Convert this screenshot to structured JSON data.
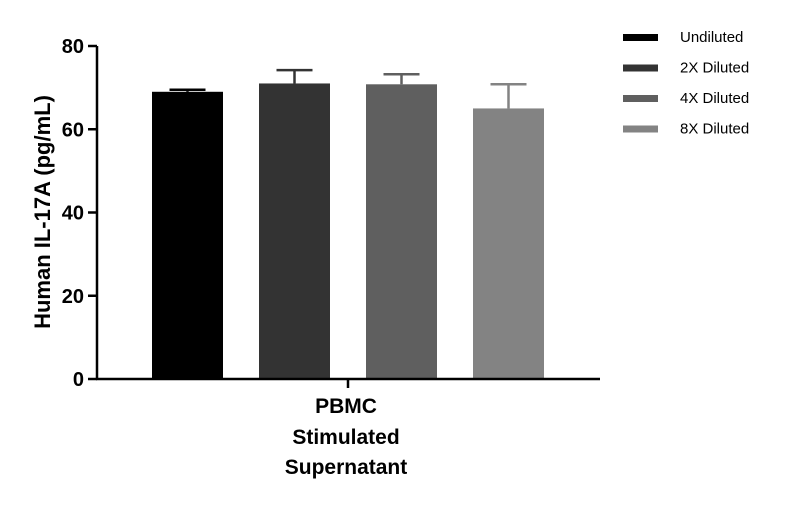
{
  "chart_data": {
    "type": "bar",
    "ylabel": "Human IL-17A (pg/mL)",
    "ylim": [
      0,
      80
    ],
    "yticks": [
      0,
      20,
      40,
      60,
      80
    ],
    "category_lines": [
      "PBMC",
      "Stimulated",
      "Supernatant"
    ],
    "legend_position": "top-right",
    "grid": false,
    "series": [
      {
        "name": "Undiluted",
        "value": 69.0,
        "error": 0.5,
        "color": "#000000"
      },
      {
        "name": "2X Diluted",
        "value": 71.0,
        "error": 3.2,
        "color": "#333333"
      },
      {
        "name": "4X Diluted",
        "value": 70.8,
        "error": 2.4,
        "color": "#5f5f5f"
      },
      {
        "name": "8X Diluted",
        "value": 65.0,
        "error": 5.8,
        "color": "#838383"
      }
    ]
  }
}
